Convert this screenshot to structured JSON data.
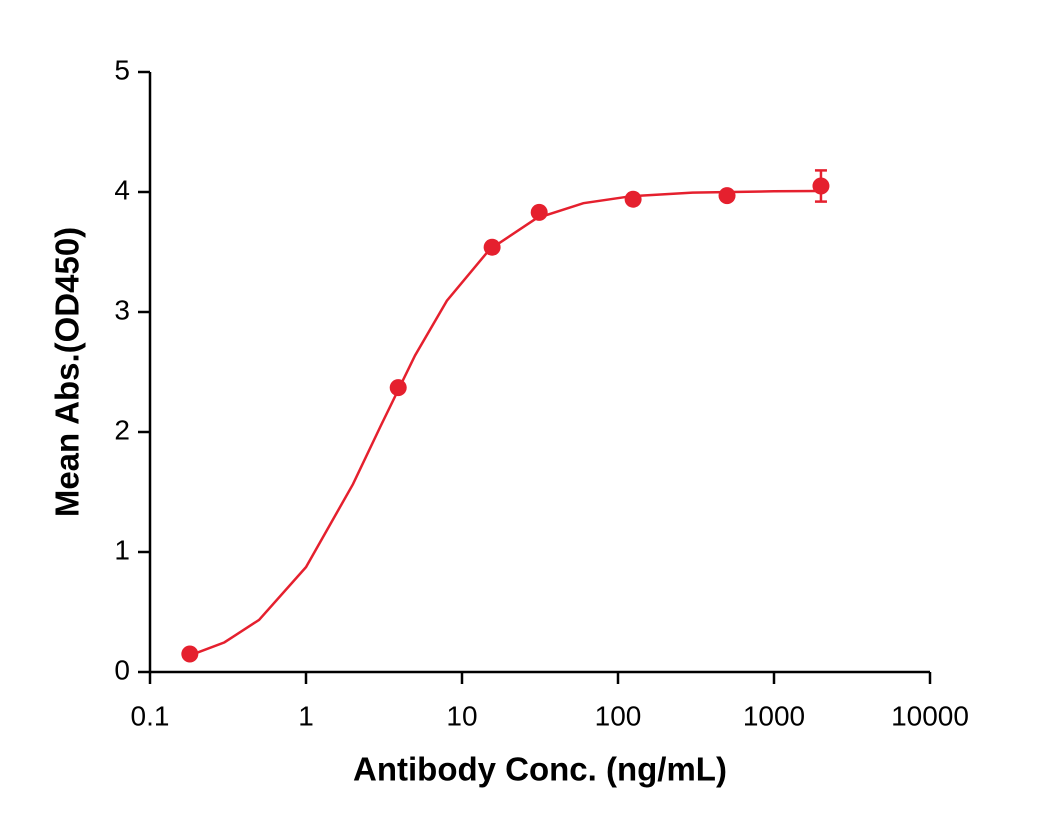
{
  "chart_data": {
    "type": "scatter",
    "x_label": "Antibody Conc. (ng/mL)",
    "y_label": "Mean Abs.(OD450)",
    "log_x": true,
    "color": "#e5202e",
    "xlim": [
      0.1,
      10000
    ],
    "xticks": [
      0.1,
      1,
      10,
      100,
      1000,
      10000
    ],
    "ylim": [
      0,
      5
    ],
    "yticks": [
      0,
      1,
      2,
      3,
      4,
      5
    ],
    "x": [
      0.18,
      3.9,
      15.6,
      31.25,
      125,
      500,
      2000
    ],
    "values": [
      0.15,
      2.37,
      3.54,
      3.83,
      3.94,
      3.97,
      4.05
    ],
    "errors": [
      null,
      null,
      null,
      null,
      null,
      null,
      0.13
    ],
    "fit": {
      "x": [
        0.18,
        0.3,
        0.5,
        1,
        2,
        3,
        5,
        8,
        15,
        30,
        60,
        120,
        300,
        1000,
        2000
      ],
      "values": [
        0.138,
        0.247,
        0.434,
        0.874,
        1.565,
        2.046,
        2.638,
        3.094,
        3.52,
        3.781,
        3.907,
        3.964,
        3.995,
        4.006,
        4.008
      ]
    }
  }
}
